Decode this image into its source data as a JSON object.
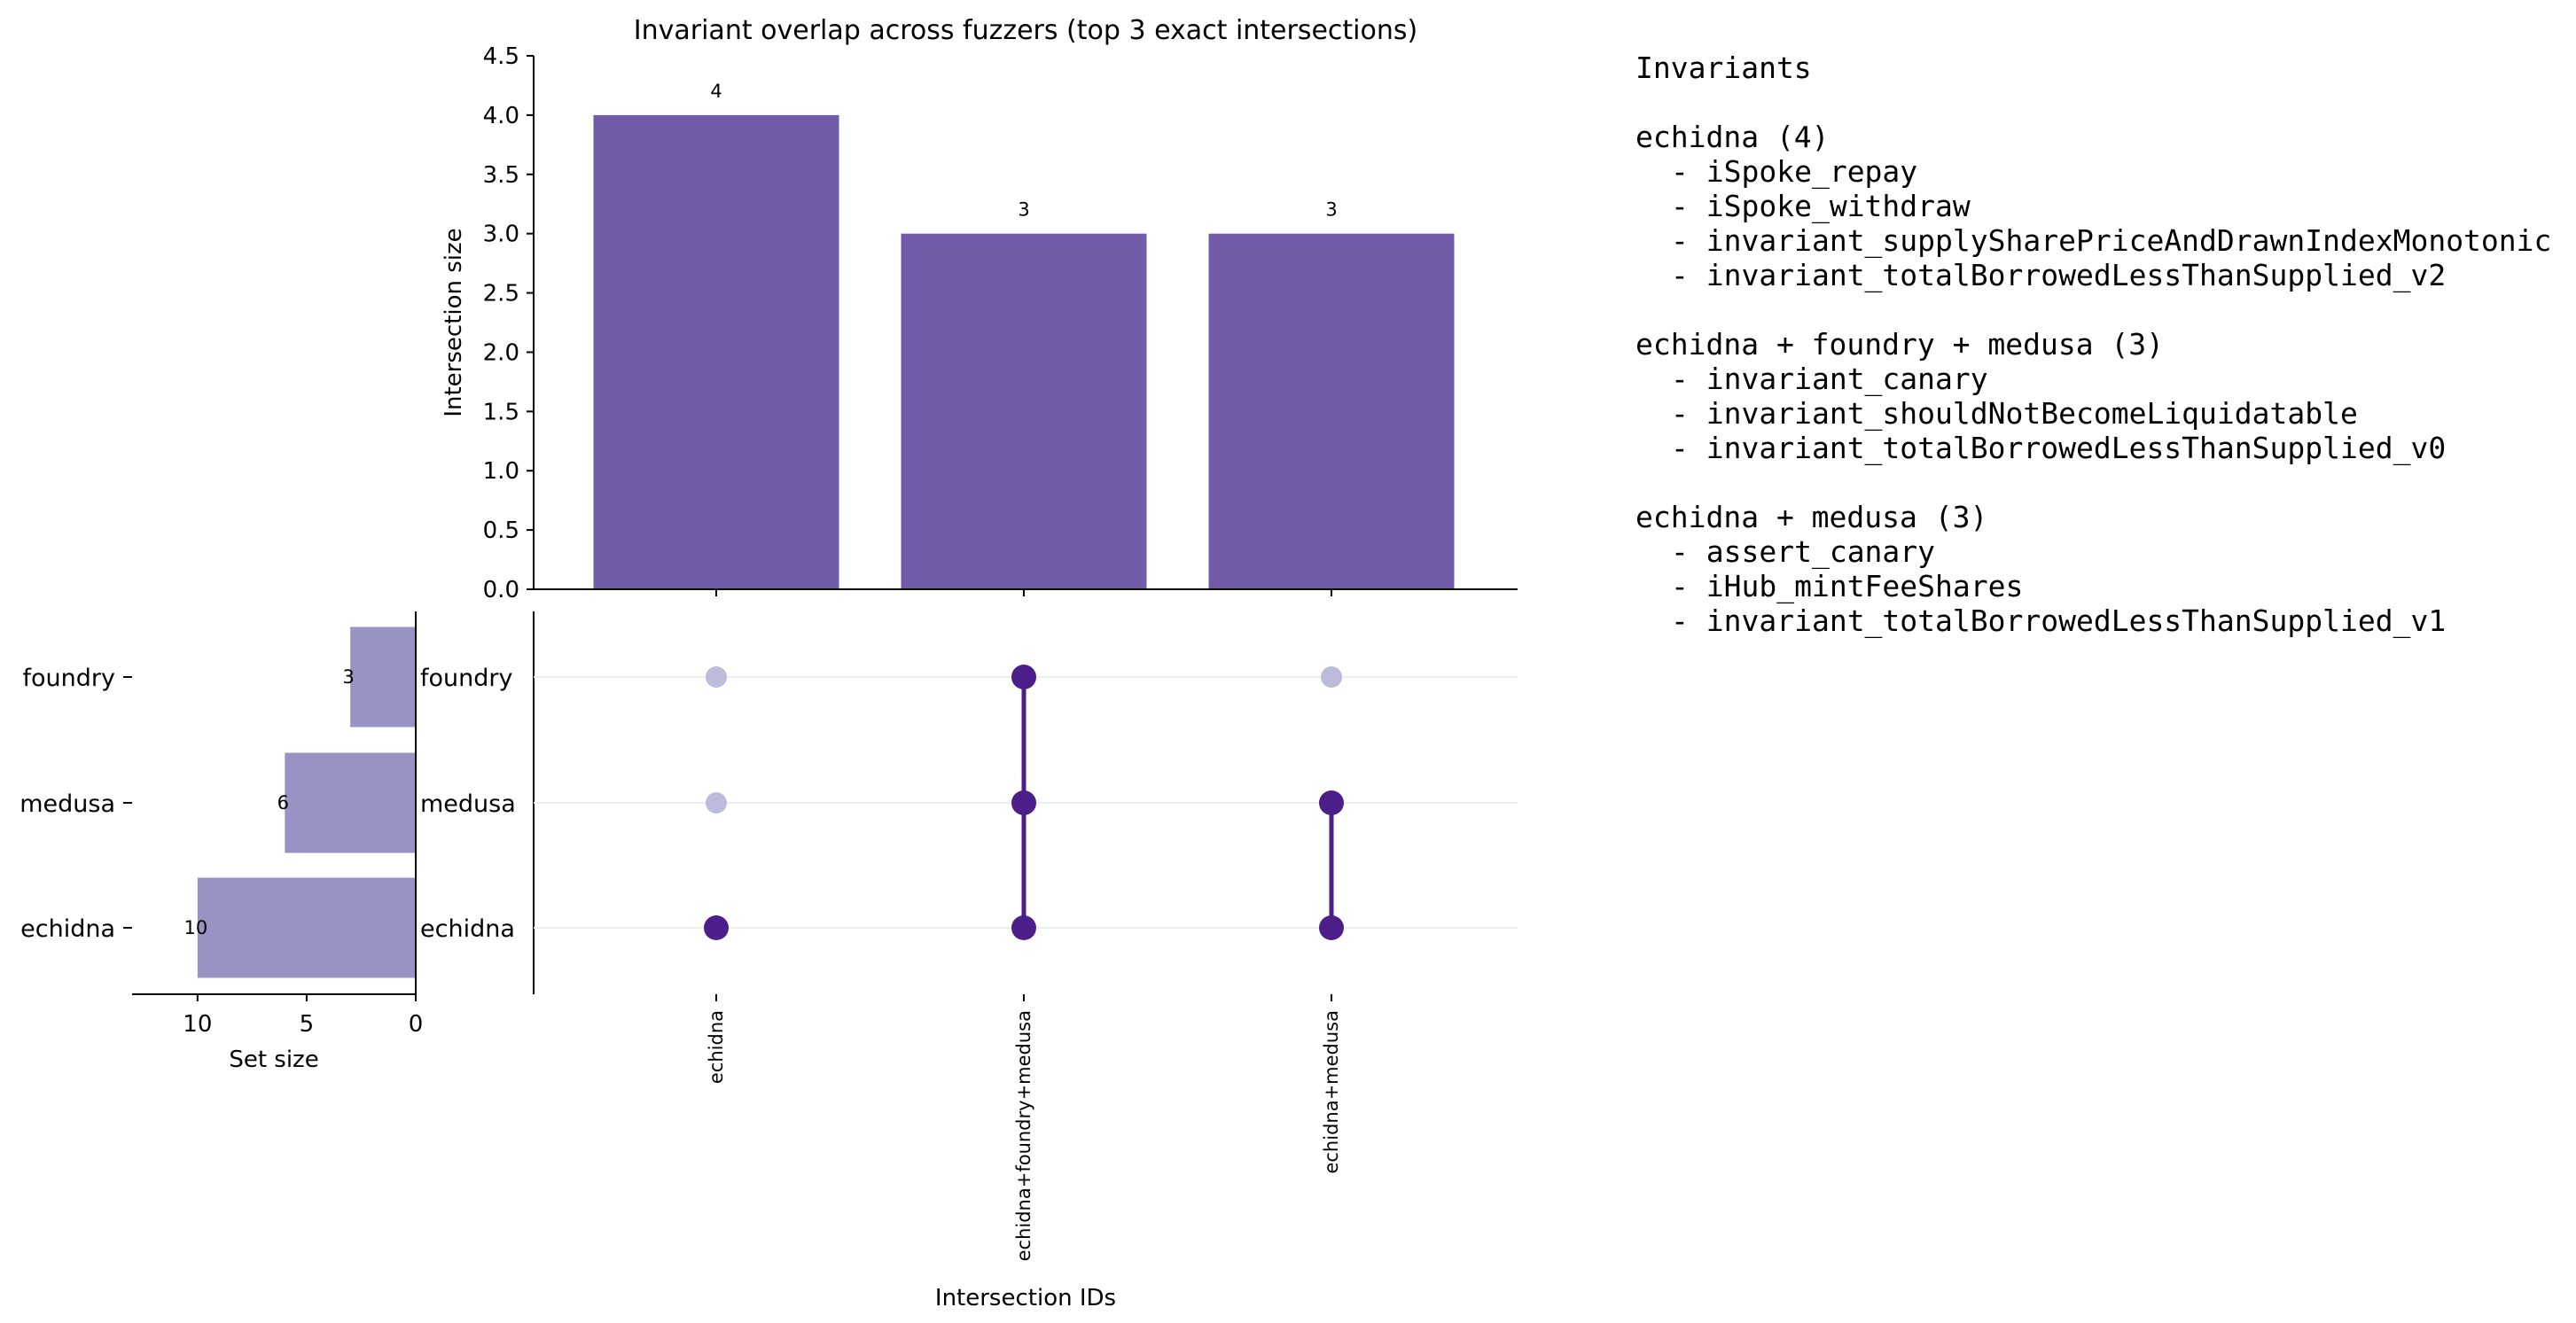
{
  "title": "Invariant overlap across fuzzers (top 3 exact intersections)",
  "colors": {
    "intersection_bar": "#725ca9",
    "set_bar": "#9893c5",
    "dot_active": "#4b1e8a",
    "dot_inactive": "#bcbbdc",
    "connector": "#4b1e8a",
    "axis": "#000000",
    "row_grid": "#ededed"
  },
  "chart_data": [
    {
      "name": "intersection_sizes",
      "type": "bar",
      "categories": [
        "echidna",
        "echidna+foundry+medusa",
        "echidna+medusa"
      ],
      "values": [
        4,
        3,
        3
      ],
      "data_labels": [
        "4",
        "3",
        "3"
      ],
      "ylabel": "Intersection size",
      "xlabel": "Intersection IDs",
      "ylim": [
        0,
        4.5
      ],
      "yticks": [
        "0.0",
        "0.5",
        "1.0",
        "1.5",
        "2.0",
        "2.5",
        "3.0",
        "3.5",
        "4.0",
        "4.5"
      ],
      "grid": false
    },
    {
      "name": "set_sizes",
      "type": "bar",
      "orientation": "horizontal",
      "categories": [
        "foundry",
        "medusa",
        "echidna"
      ],
      "values": [
        3,
        6,
        10
      ],
      "data_labels": [
        "3",
        "6",
        "10"
      ],
      "xlabel": "Set size",
      "xlim": [
        13,
        0
      ],
      "xticks": [
        "10",
        "5",
        "0"
      ],
      "grid": false
    },
    {
      "name": "membership_matrix",
      "type": "scatter",
      "rows": [
        "foundry",
        "medusa",
        "echidna"
      ],
      "columns": [
        "echidna",
        "echidna+foundry+medusa",
        "echidna+medusa"
      ],
      "membership": [
        [
          false,
          true,
          false
        ],
        [
          false,
          true,
          true
        ],
        [
          true,
          true,
          true
        ]
      ]
    }
  ],
  "invariants_panel": {
    "heading": "Invariants",
    "groups": [
      {
        "label": "echidna (4)",
        "items": [
          "iSpoke_repay",
          "iSpoke_withdraw",
          "invariant_supplySharePriceAndDrawnIndexMonotonic",
          "invariant_totalBorrowedLessThanSupplied_v2"
        ]
      },
      {
        "label": "echidna + foundry + medusa (3)",
        "items": [
          "invariant_canary",
          "invariant_shouldNotBecomeLiquidatable",
          "invariant_totalBorrowedLessThanSupplied_v0"
        ]
      },
      {
        "label": "echidna + medusa (3)",
        "items": [
          "assert_canary",
          "iHub_mintFeeShares",
          "invariant_totalBorrowedLessThanSupplied_v1"
        ]
      }
    ]
  }
}
